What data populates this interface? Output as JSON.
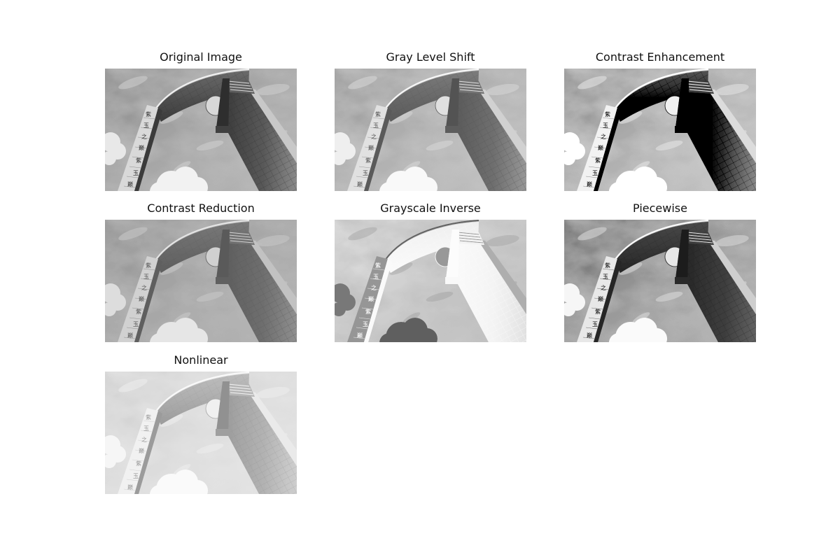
{
  "panels": [
    {
      "title": "Original Image",
      "transform": "identity"
    },
    {
      "title": "Gray Level Shift",
      "transform": "shift"
    },
    {
      "title": "Contrast Enhancement",
      "transform": "enhance"
    },
    {
      "title": "Contrast Reduction",
      "transform": "reduce"
    },
    {
      "title": "Grayscale Inverse",
      "transform": "inverse"
    },
    {
      "title": "Piecewise",
      "transform": "piecewise"
    },
    {
      "title": "Nonlinear",
      "transform": "nonlinear"
    }
  ],
  "scene": {
    "icon": "building-arch-photo",
    "sky": "cloudy-sky",
    "tower_text": "紫玉之巅"
  }
}
